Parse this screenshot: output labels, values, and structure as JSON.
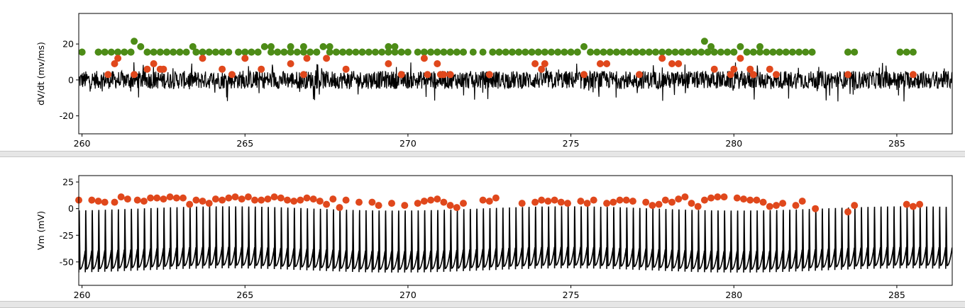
{
  "colors": {
    "trace": "#000000",
    "onset_marker": "#e0481c",
    "peak_marker": "#4d8c17",
    "divider": "#e6e6e6"
  },
  "chart_data": [
    {
      "type": "line",
      "name": "dvdt",
      "ylabel": "dV/dt (mv/ms)",
      "xlim": [
        259.9,
        286.7
      ],
      "ylim": [
        -30,
        37
      ],
      "x_ticks": [
        260,
        265,
        270,
        275,
        280,
        285
      ],
      "y_ticks": [
        -20,
        0,
        20
      ],
      "trace": {
        "baseline": 0,
        "noise_amplitude": 5,
        "spike_range": [
          -12,
          10
        ],
        "x_step": 0.05
      },
      "markers": [
        {
          "name": "peak",
          "color": "#4d8c17",
          "y": [
            15.5,
            15.5,
            15.5,
            15.5,
            15.5,
            15.5,
            15.5,
            21.5,
            18.5,
            15.5,
            15.5,
            15.5,
            15.5,
            15.5,
            15.5,
            15.5,
            15.5,
            15.5,
            15.5,
            18.5,
            15.5,
            15.5,
            15.5,
            15.5,
            15.5,
            15.5,
            15.5,
            18.5,
            18.5,
            15.5,
            15.5,
            18.5,
            15.5,
            18.5,
            15.5,
            15.5,
            18.5,
            18.5,
            15.5,
            15.5,
            15.5,
            15.5,
            15.5,
            15.5,
            15.5,
            15.5,
            18.5,
            18.5,
            15.5,
            15.5,
            15.5,
            15.5,
            15.5,
            15.5,
            15.5,
            15.5,
            15.5,
            15.5,
            15.5,
            15.5,
            15.5,
            15.5,
            15.5,
            15.5,
            15.5,
            15.5,
            15.5,
            15.5,
            15.5,
            15.5,
            15.5,
            15.5,
            15.5,
            15.5,
            18.5,
            15.5,
            15.5,
            15.5,
            15.5,
            15.5,
            15.5,
            15.5,
            15.5,
            15.5,
            15.5,
            15.5,
            15.5,
            15.5,
            15.5,
            15.5,
            15.5,
            15.5,
            15.5,
            15.5,
            15.5,
            15.5,
            21.5,
            18.5,
            15.5,
            15.5,
            18.5,
            15.5,
            15.5,
            18.5,
            15.5,
            15.5,
            15.5,
            15.5,
            15.5,
            15.5,
            15.5,
            15.5,
            15.5
          ],
          "x": [
            260.0,
            260.5,
            260.7,
            260.9,
            261.1,
            261.3,
            261.5,
            261.6,
            261.8,
            262.0,
            262.2,
            262.4,
            262.6,
            262.8,
            263.0,
            263.2,
            263.5,
            263.7,
            263.9,
            263.4,
            264.1,
            264.3,
            264.5,
            264.8,
            265.0,
            265.2,
            265.4,
            265.6,
            265.8,
            266.0,
            266.2,
            266.4,
            266.6,
            266.8,
            267.0,
            267.2,
            267.4,
            267.6,
            267.8,
            268.0,
            268.2,
            268.4,
            268.6,
            268.8,
            269.0,
            269.2,
            269.4,
            269.6,
            269.8,
            270.0,
            270.3,
            270.5,
            270.7,
            270.9,
            271.1,
            271.3,
            271.5,
            271.7,
            272.0,
            272.3,
            272.6,
            272.8,
            273.0,
            273.2,
            273.4,
            273.6,
            273.8,
            274.0,
            274.2,
            274.4,
            274.6,
            274.8,
            275.0,
            275.2,
            275.4,
            275.6,
            275.8,
            276.0,
            276.2,
            276.4,
            276.6,
            276.8,
            277.0,
            277.2,
            277.4,
            277.6,
            277.8,
            278.0,
            278.2,
            278.4,
            278.6,
            278.8,
            279.0,
            279.2,
            279.4,
            279.6,
            279.1,
            279.3,
            279.8,
            280.0,
            280.2,
            280.4,
            280.6,
            280.8,
            281.0,
            281.2,
            281.4,
            281.6,
            281.8,
            282.0,
            282.2,
            282.4,
            283.5
          ],
          "x_extra": [
            260.0,
            260.5,
            260.7,
            261.1,
            261.3,
            261.5,
            262.0,
            262.2,
            262.4,
            262.6,
            262.8,
            263.0,
            263.5,
            263.7,
            263.9,
            264.1,
            264.3,
            264.8,
            265.0,
            265.2,
            265.4,
            265.8,
            266.0,
            266.2,
            266.4,
            266.8,
            267.0,
            267.2,
            267.6,
            267.8,
            268.0,
            268.2,
            268.6,
            269.4,
            269.6,
            269.8,
            270.5,
            270.7,
            270.9,
            271.1,
            271.3,
            271.5,
            271.7,
            272.6,
            272.8,
            273.0,
            273.2,
            273.4,
            273.6,
            273.8,
            274.0,
            274.2,
            274.6,
            274.8,
            275.0,
            275.2,
            275.6,
            276.0,
            276.2,
            276.4,
            276.6,
            277.0,
            277.2,
            277.4,
            277.6,
            278.0,
            278.2,
            278.4,
            278.6,
            278.8,
            279.0,
            279.2,
            279.4,
            279.8,
            280.0,
            280.4,
            280.6,
            280.8,
            281.2,
            281.4,
            281.6,
            282.4,
            283.5,
            283.7,
            285.1,
            285.3,
            285.5
          ]
        },
        {
          "name": "onset",
          "color": "#e0481c",
          "x": [
            260.8,
            261.0,
            261.1,
            261.6,
            262.0,
            262.2,
            262.4,
            262.5,
            263.7,
            264.3,
            264.6,
            265.0,
            265.5,
            266.4,
            266.8,
            266.9,
            267.5,
            268.1,
            269.4,
            269.8,
            270.6,
            270.5,
            270.9,
            271.0,
            271.1,
            271.3,
            272.5,
            273.9,
            274.1,
            274.2,
            275.4,
            275.9,
            276.1,
            277.1,
            277.8,
            278.1,
            278.3,
            279.4,
            279.9,
            280.0,
            280.2,
            280.5,
            280.6,
            281.1,
            281.3,
            283.5,
            285.5
          ],
          "y": [
            3,
            9,
            12,
            3,
            6,
            9,
            6,
            6,
            12,
            6,
            3,
            12,
            6,
            9,
            3,
            12,
            12,
            6,
            9,
            3,
            3,
            12,
            9,
            3,
            3,
            3,
            3,
            9,
            6,
            9,
            3,
            9,
            9,
            3,
            12,
            9,
            9,
            6,
            3,
            6,
            12,
            6,
            3,
            6,
            3,
            3,
            3
          ]
        }
      ]
    },
    {
      "type": "line",
      "name": "vm",
      "ylabel": "Vm (mV)",
      "xlim": [
        259.9,
        286.7
      ],
      "ylim": [
        -72,
        31
      ],
      "x_ticks": [
        260,
        265,
        270,
        275,
        280,
        285
      ],
      "y_ticks": [
        -50,
        -25,
        0,
        25
      ],
      "trace": {
        "spike_period": 0.2,
        "trough_mV": -58,
        "peak_mV": 5
      },
      "markers": [
        {
          "name": "spike-peak",
          "color": "#e0481c",
          "x": [
            259.9,
            260.3,
            260.5,
            260.7,
            261.0,
            261.2,
            261.4,
            261.7,
            261.9,
            262.1,
            262.3,
            262.5,
            262.7,
            262.9,
            263.1,
            263.3,
            263.5,
            263.7,
            263.9,
            264.1,
            264.3,
            264.5,
            264.7,
            264.9,
            265.1,
            265.3,
            265.5,
            265.7,
            265.9,
            266.1,
            266.3,
            266.5,
            266.7,
            266.9,
            267.1,
            267.3,
            267.5,
            267.7,
            267.9,
            268.1,
            268.5,
            268.9,
            269.1,
            269.5,
            269.9,
            270.3,
            270.5,
            270.7,
            270.9,
            271.1,
            271.3,
            271.5,
            271.7,
            272.3,
            272.5,
            272.7,
            273.5,
            273.9,
            274.1,
            274.3,
            274.5,
            274.7,
            274.9,
            275.3,
            275.5,
            275.7,
            276.1,
            276.3,
            276.5,
            276.7,
            276.9,
            277.3,
            277.5,
            277.7,
            277.9,
            278.1,
            278.3,
            278.5,
            278.7,
            278.9,
            279.1,
            279.3,
            279.5,
            279.7,
            280.1,
            280.3,
            280.5,
            280.7,
            280.9,
            281.1,
            281.3,
            281.5,
            281.9,
            282.1,
            282.5,
            283.5,
            283.7,
            285.3,
            285.5,
            285.7
          ],
          "y": [
            8,
            8,
            7,
            6,
            6,
            11,
            9,
            8,
            7,
            10,
            10,
            9,
            11,
            10,
            10,
            4,
            8,
            7,
            5,
            9,
            8,
            10,
            11,
            9,
            11,
            8,
            8,
            9,
            11,
            10,
            8,
            7,
            8,
            10,
            9,
            7,
            4,
            9,
            1,
            8,
            6,
            6,
            3,
            5,
            3,
            5,
            7,
            8,
            9,
            6,
            3,
            1,
            5,
            8,
            7,
            10,
            5,
            6,
            8,
            7,
            8,
            6,
            5,
            7,
            5,
            8,
            5,
            6,
            8,
            8,
            7,
            6,
            3,
            4,
            8,
            6,
            9,
            11,
            5,
            2,
            8,
            10,
            11,
            11,
            10,
            9,
            8,
            8,
            6,
            2,
            3,
            5,
            3,
            7,
            0,
            -3,
            3,
            4,
            2,
            4
          ]
        }
      ]
    }
  ]
}
